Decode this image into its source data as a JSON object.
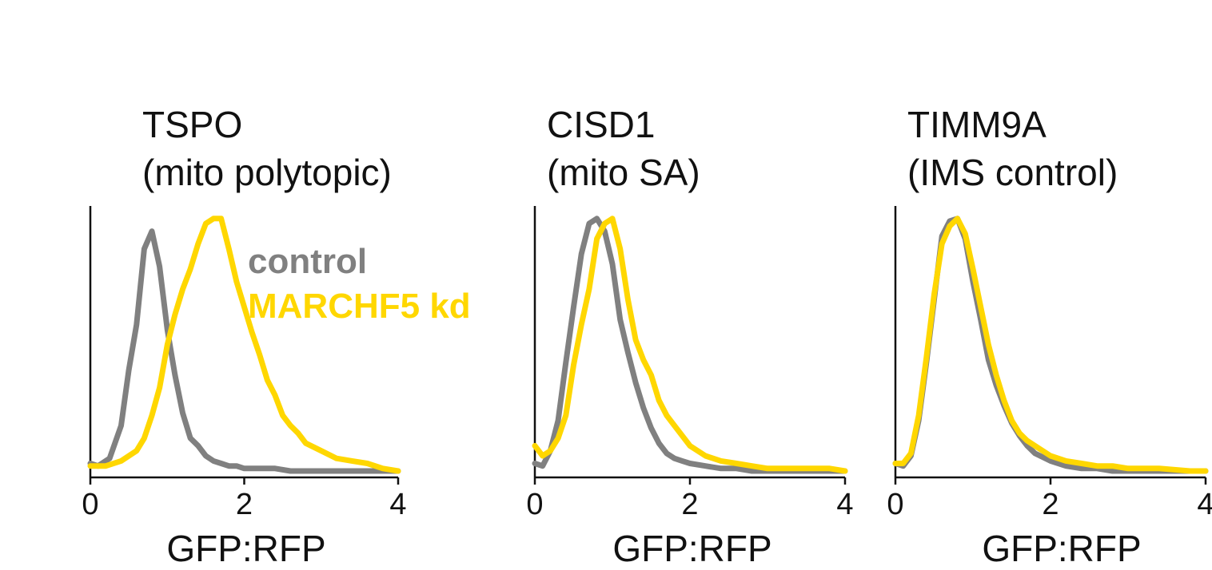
{
  "chart_data": [
    {
      "type": "line",
      "title_lines": [
        "TSPO",
        "(mito polytopic)"
      ],
      "xlabel": "GFP:RFP",
      "ylabel": "",
      "xlim": [
        0,
        4
      ],
      "ylim": [
        0,
        1.05
      ],
      "xticks": [
        "0",
        "2",
        "4"
      ],
      "legend": {
        "placement": "top-right",
        "entries": [
          "control",
          "MARCHF5 kd"
        ]
      },
      "series": [
        {
          "name": "control",
          "color": "#808080",
          "x": [
            0,
            0.1,
            0.25,
            0.4,
            0.5,
            0.6,
            0.7,
            0.8,
            0.9,
            1.0,
            1.1,
            1.2,
            1.3,
            1.4,
            1.5,
            1.6,
            1.7,
            1.8,
            1.9,
            2.0,
            2.2,
            2.4,
            2.6,
            2.8,
            3.0,
            3.2,
            3.4,
            3.6,
            3.8,
            4.0
          ],
          "y": [
            0.03,
            0.02,
            0.05,
            0.18,
            0.4,
            0.58,
            0.88,
            0.95,
            0.81,
            0.56,
            0.38,
            0.23,
            0.13,
            0.1,
            0.06,
            0.04,
            0.03,
            0.02,
            0.02,
            0.01,
            0.01,
            0.01,
            0.0,
            0.0,
            0.0,
            0.0,
            0.0,
            0.0,
            0.0,
            0.0
          ]
        },
        {
          "name": "MARCHF5 kd",
          "color": "#FFD700",
          "x": [
            0,
            0.2,
            0.4,
            0.6,
            0.7,
            0.8,
            0.9,
            1.0,
            1.1,
            1.2,
            1.3,
            1.4,
            1.5,
            1.6,
            1.7,
            1.8,
            1.9,
            2.0,
            2.1,
            2.2,
            2.3,
            2.4,
            2.5,
            2.6,
            2.7,
            2.8,
            3.0,
            3.2,
            3.4,
            3.6,
            3.8,
            4.0
          ],
          "y": [
            0.02,
            0.02,
            0.04,
            0.08,
            0.13,
            0.22,
            0.33,
            0.5,
            0.62,
            0.72,
            0.8,
            0.9,
            0.98,
            1.0,
            1.0,
            0.88,
            0.75,
            0.65,
            0.55,
            0.46,
            0.36,
            0.3,
            0.22,
            0.18,
            0.15,
            0.11,
            0.08,
            0.05,
            0.04,
            0.03,
            0.01,
            0.0
          ]
        }
      ]
    },
    {
      "type": "line",
      "title_lines": [
        "CISD1",
        "(mito SA)"
      ],
      "xlabel": "GFP:RFP",
      "ylabel": "",
      "xlim": [
        0,
        4
      ],
      "ylim": [
        0,
        1.05
      ],
      "xticks": [
        "0",
        "2",
        "4"
      ],
      "series": [
        {
          "name": "control",
          "color": "#808080",
          "x": [
            0,
            0.1,
            0.2,
            0.3,
            0.4,
            0.5,
            0.6,
            0.7,
            0.8,
            0.9,
            1.0,
            1.1,
            1.2,
            1.3,
            1.4,
            1.5,
            1.6,
            1.7,
            1.8,
            1.9,
            2.0,
            2.2,
            2.4,
            2.6,
            2.8,
            3.0,
            3.4,
            3.8,
            4.0
          ],
          "y": [
            0.03,
            0.02,
            0.08,
            0.2,
            0.43,
            0.65,
            0.86,
            0.98,
            1.0,
            0.95,
            0.82,
            0.6,
            0.47,
            0.35,
            0.25,
            0.17,
            0.11,
            0.07,
            0.05,
            0.04,
            0.03,
            0.02,
            0.01,
            0.01,
            0.0,
            0.0,
            0.0,
            0.0,
            0.0
          ]
        },
        {
          "name": "MARCHF5 kd",
          "color": "#FFD700",
          "x": [
            0,
            0.1,
            0.2,
            0.3,
            0.4,
            0.5,
            0.6,
            0.7,
            0.8,
            0.9,
            1.0,
            1.1,
            1.2,
            1.3,
            1.4,
            1.5,
            1.6,
            1.7,
            1.8,
            1.9,
            2.0,
            2.2,
            2.4,
            2.6,
            2.8,
            3.0,
            3.4,
            3.8,
            4.0
          ],
          "y": [
            0.1,
            0.06,
            0.08,
            0.13,
            0.22,
            0.42,
            0.58,
            0.72,
            0.92,
            0.98,
            1.0,
            0.88,
            0.68,
            0.52,
            0.44,
            0.38,
            0.28,
            0.22,
            0.18,
            0.14,
            0.1,
            0.06,
            0.04,
            0.03,
            0.02,
            0.01,
            0.01,
            0.01,
            0.0
          ]
        }
      ]
    },
    {
      "type": "line",
      "title_lines": [
        "TIMM9A",
        "(IMS control)"
      ],
      "xlabel": "GFP:RFP",
      "ylabel": "",
      "xlim": [
        0,
        4
      ],
      "ylim": [
        0,
        1.05
      ],
      "xticks": [
        "0",
        "2",
        "4"
      ],
      "series": [
        {
          "name": "control",
          "color": "#808080",
          "x": [
            0,
            0.1,
            0.2,
            0.3,
            0.4,
            0.5,
            0.6,
            0.7,
            0.8,
            0.9,
            1.0,
            1.1,
            1.2,
            1.3,
            1.4,
            1.5,
            1.6,
            1.7,
            1.8,
            2.0,
            2.2,
            2.4,
            2.6,
            2.8,
            3.0,
            3.4,
            3.8,
            4.0
          ],
          "y": [
            0.03,
            0.02,
            0.06,
            0.2,
            0.43,
            0.68,
            0.93,
            0.99,
            1.0,
            0.92,
            0.75,
            0.6,
            0.44,
            0.34,
            0.26,
            0.19,
            0.14,
            0.1,
            0.07,
            0.04,
            0.02,
            0.01,
            0.01,
            0.0,
            0.0,
            0.0,
            0.0,
            0.0
          ]
        },
        {
          "name": "MARCHF5 kd",
          "color": "#FFD700",
          "x": [
            0,
            0.1,
            0.2,
            0.3,
            0.4,
            0.5,
            0.6,
            0.7,
            0.8,
            0.9,
            1.0,
            1.1,
            1.2,
            1.3,
            1.4,
            1.5,
            1.6,
            1.7,
            1.8,
            2.0,
            2.2,
            2.4,
            2.6,
            2.8,
            3.0,
            3.4,
            3.8,
            4.0
          ],
          "y": [
            0.03,
            0.03,
            0.07,
            0.22,
            0.45,
            0.7,
            0.9,
            0.97,
            1.0,
            0.94,
            0.8,
            0.65,
            0.5,
            0.38,
            0.28,
            0.2,
            0.15,
            0.12,
            0.1,
            0.06,
            0.04,
            0.03,
            0.02,
            0.02,
            0.01,
            0.01,
            0.0,
            0.0
          ]
        }
      ]
    }
  ]
}
